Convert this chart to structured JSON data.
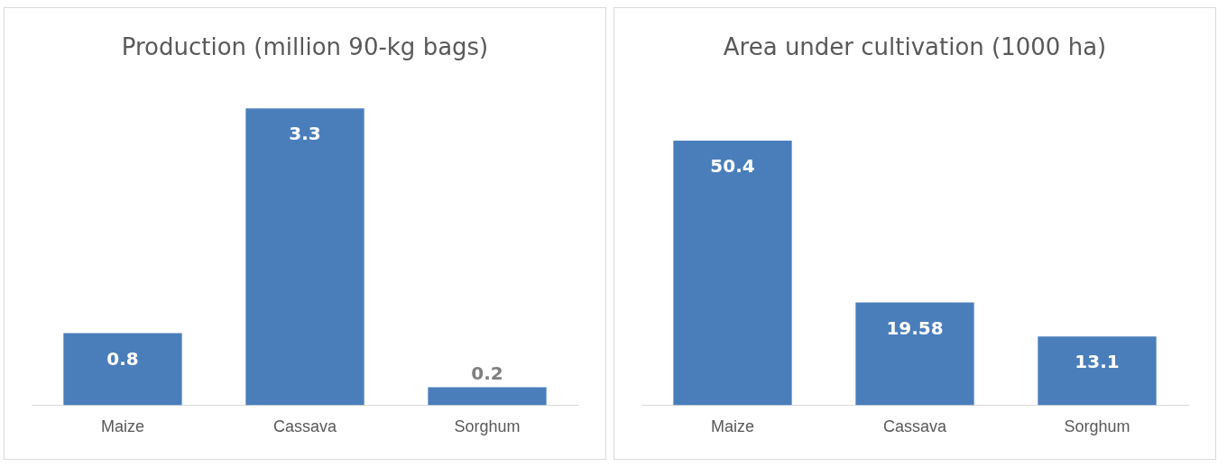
{
  "chart_data": [
    {
      "type": "bar",
      "title": "Production (million 90-kg bags)",
      "categories": [
        "Maize",
        "Cassava",
        "Sorghum"
      ],
      "values": [
        0.8,
        3.3,
        0.2
      ],
      "color": "#4a7ebb",
      "data_labels": true,
      "legend": false,
      "grid": false
    },
    {
      "type": "bar",
      "title": "Area under cultivation (1000 ha)",
      "categories": [
        "Maize",
        "Cassava",
        "Sorghum"
      ],
      "values": [
        50.4,
        19.58,
        13.1
      ],
      "color": "#4a7ebb",
      "data_labels": true,
      "legend": false,
      "grid": false
    }
  ]
}
